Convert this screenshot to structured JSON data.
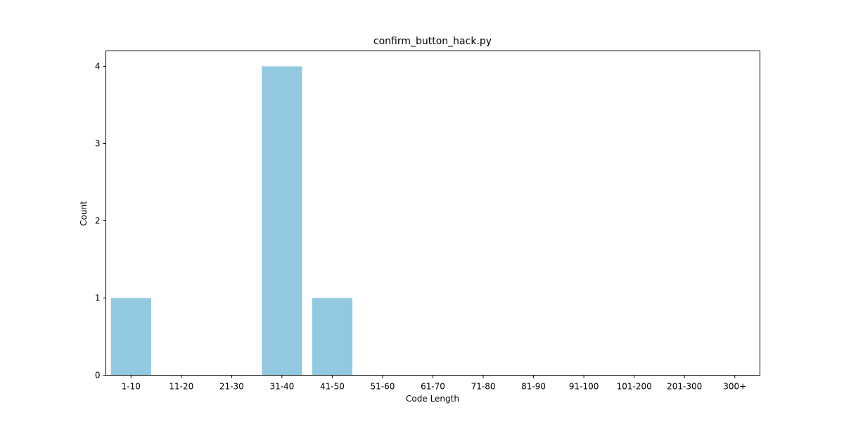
{
  "chart_data": {
    "type": "bar",
    "title": "confirm_button_hack.py",
    "xlabel": "Code Length",
    "ylabel": "Count",
    "categories": [
      "1-10",
      "11-20",
      "21-30",
      "31-40",
      "41-50",
      "51-60",
      "61-70",
      "71-80",
      "81-90",
      "91-100",
      "101-200",
      "201-300",
      "300+"
    ],
    "values": [
      1,
      0,
      0,
      4,
      1,
      0,
      0,
      0,
      0,
      0,
      0,
      0,
      0
    ],
    "ylim": [
      0,
      4.2
    ],
    "yticks": [
      0,
      1,
      2,
      3,
      4
    ],
    "grid": false,
    "legend": "none",
    "bar_color": "#92c9e0"
  }
}
